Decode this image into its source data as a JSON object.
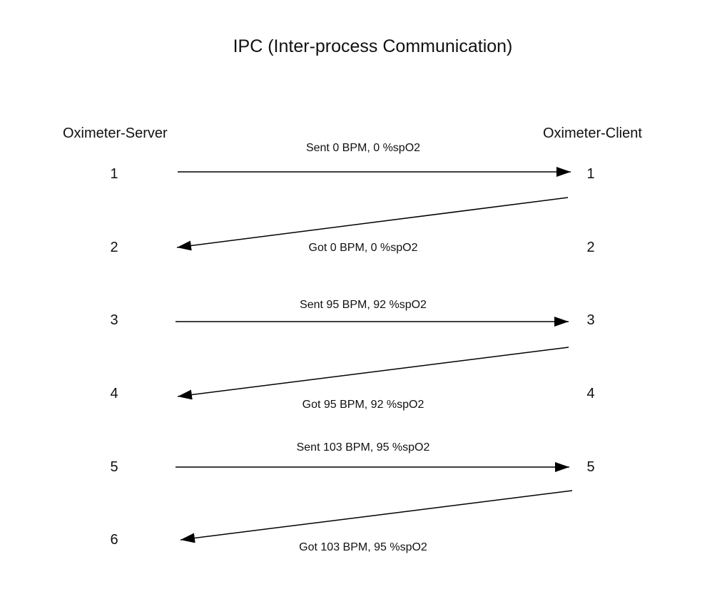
{
  "title": "IPC (Inter-process Communication)",
  "server_label": "Oximeter-Server",
  "client_label": "Oximeter-Client",
  "server_steps": [
    "1",
    "2",
    "3",
    "4",
    "5",
    "6"
  ],
  "client_steps": [
    "1",
    "2",
    "3",
    "4",
    "5"
  ],
  "messages": [
    {
      "text": "Sent 0 BPM, 0 %spO2",
      "direction": "server-to-client"
    },
    {
      "text": "Got 0 BPM, 0 %spO2",
      "direction": "client-to-server"
    },
    {
      "text": "Sent 95 BPM, 92 %spO2",
      "direction": "server-to-client"
    },
    {
      "text": "Got 95 BPM, 92 %spO2",
      "direction": "client-to-server"
    },
    {
      "text": "Sent 103 BPM, 95 %spO2",
      "direction": "server-to-client"
    },
    {
      "text": "Got 103 BPM, 95 %spO2",
      "direction": "client-to-server"
    }
  ],
  "colors": {
    "line": "#000000",
    "text": "#111111",
    "background": "#ffffff"
  }
}
